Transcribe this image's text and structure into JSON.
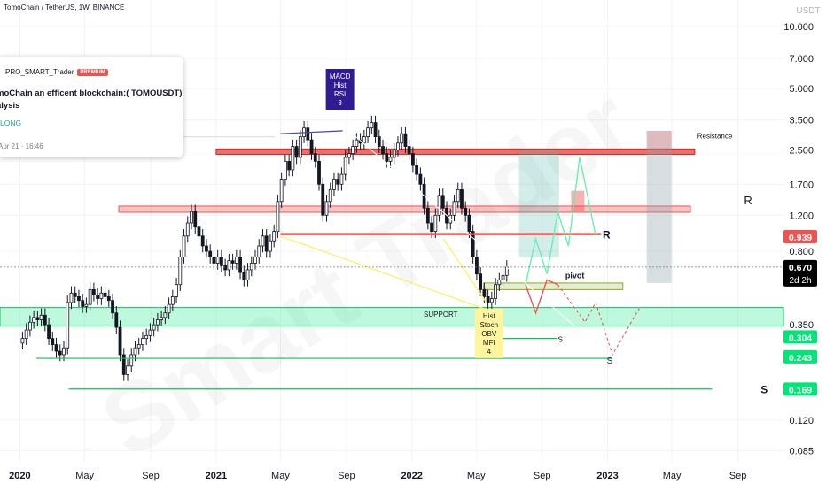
{
  "header": {
    "symbol": "TomoChain / TetherUS, 1W, BINANCE"
  },
  "idea_card": {
    "author": "PRO_SMART_Trader",
    "badge": "PREMIUM",
    "title_line1": "moChain an efficent blockchain:( TOMOUSDT)",
    "title_line2": "alysis",
    "direction": "LONG",
    "date": "Apr 21 · 16:46"
  },
  "watermark": "Smart Trader",
  "chart_data": {
    "type": "candlestick",
    "title": "TomoChain / TetherUS, 1W, BINANCE",
    "y_scale": "log",
    "y_unit": "USDT",
    "ylim": [
      0.075,
      13.5
    ],
    "y_ticks": [
      "10.000",
      "7.000",
      "5.000",
      "3.500",
      "2.500",
      "1.700",
      "1.200",
      "0.800",
      "0.350",
      "0.120",
      "0.085"
    ],
    "y_tick_values": [
      10,
      7,
      5,
      3.5,
      2.5,
      1.7,
      1.2,
      0.8,
      0.35,
      0.12,
      0.085
    ],
    "x_ticks": [
      "2020",
      "May",
      "Sep",
      "2021",
      "May",
      "Sep",
      "2022",
      "May",
      "Sep",
      "2023",
      "May",
      "Sep"
    ],
    "x_tick_dates": [
      "2020-01",
      "2020-05",
      "2020-09",
      "2021-01",
      "2021-05",
      "2021-09",
      "2022-01",
      "2022-05",
      "2022-09",
      "2023-01",
      "2023-05",
      "2023-09"
    ],
    "xlim": [
      "2019-11-25",
      "2023-11-25"
    ],
    "last_price": "0.670",
    "last_price_value": 0.67,
    "countdown": "2d 2h",
    "price_labels": [
      {
        "text": "0.939",
        "value": 0.939,
        "color": "#ef5350"
      },
      {
        "text": "0.304",
        "value": 0.304,
        "color": "#00e676"
      },
      {
        "text": "0.243",
        "value": 0.243,
        "color": "#00e676"
      },
      {
        "text": "0.169",
        "value": 0.169,
        "color": "#00e676"
      }
    ],
    "weekly_closes": [
      0.3,
      0.33,
      0.36,
      0.38,
      0.37,
      0.39,
      0.35,
      0.3,
      0.28,
      0.26,
      0.25,
      0.27,
      0.45,
      0.5,
      0.48,
      0.46,
      0.43,
      0.44,
      0.52,
      0.49,
      0.47,
      0.5,
      0.48,
      0.46,
      0.4,
      0.34,
      0.25,
      0.2,
      0.22,
      0.25,
      0.27,
      0.28,
      0.3,
      0.31,
      0.33,
      0.35,
      0.37,
      0.38,
      0.4,
      0.44,
      0.48,
      0.55,
      0.75,
      0.95,
      1.1,
      1.25,
      1.05,
      0.95,
      0.85,
      0.8,
      0.75,
      0.7,
      0.75,
      0.68,
      0.65,
      0.72,
      0.7,
      0.75,
      0.63,
      0.58,
      0.65,
      0.7,
      0.75,
      0.85,
      0.95,
      0.8,
      0.9,
      1.0,
      1.4,
      1.8,
      2.2,
      2.0,
      2.6,
      2.3,
      2.9,
      3.2,
      2.8,
      2.4,
      2.2,
      1.7,
      1.2,
      1.4,
      1.6,
      1.8,
      1.7,
      1.9,
      2.3,
      2.4,
      2.6,
      2.8,
      2.7,
      2.9,
      3.2,
      3.4,
      2.9,
      2.6,
      2.4,
      2.2,
      2.3,
      2.5,
      2.7,
      3.0,
      2.6,
      2.4,
      2.1,
      1.9,
      1.7,
      1.3,
      1.1,
      1.0,
      1.2,
      1.5,
      1.3,
      1.1,
      1.2,
      1.4,
      1.6,
      1.3,
      1.2,
      1.0,
      0.75,
      0.62,
      0.52,
      0.48,
      0.45,
      0.47,
      0.55,
      0.58,
      0.61,
      0.67
    ],
    "annotations": {
      "box_top": "MACD\nHist\nRSI\n3",
      "box_bottom": "Hist\nStoch\nOBV\nMFI\n4",
      "support_label": "SUPPORT",
      "resistance_label": "Resistance",
      "pivot_label": "pivot",
      "r_label": "R",
      "s_label": "S"
    },
    "grid": true
  }
}
